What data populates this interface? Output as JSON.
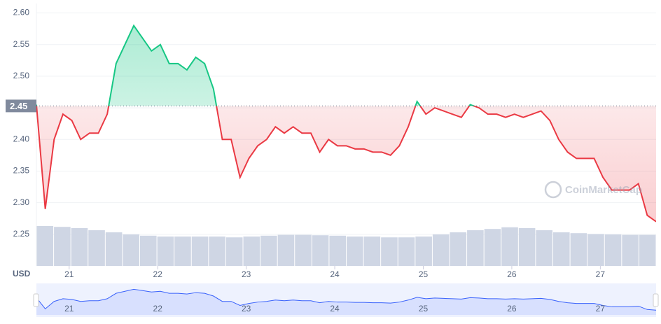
{
  "chart_data": {
    "type": "line",
    "currency": "USD",
    "watermark": "CoinMarketCap",
    "x": [
      20.63,
      20.73,
      20.83,
      20.93,
      21.03,
      21.13,
      21.23,
      21.33,
      21.43,
      21.53,
      21.63,
      21.73,
      21.83,
      21.93,
      22.03,
      22.13,
      22.23,
      22.33,
      22.43,
      22.53,
      22.63,
      22.73,
      22.83,
      22.93,
      23.03,
      23.13,
      23.23,
      23.33,
      23.43,
      23.53,
      23.63,
      23.73,
      23.83,
      23.93,
      24.03,
      24.13,
      24.23,
      24.33,
      24.43,
      24.53,
      24.63,
      24.73,
      24.83,
      24.93,
      25.03,
      25.13,
      25.23,
      25.33,
      25.43,
      25.53,
      25.63,
      25.73,
      25.83,
      25.93,
      26.03,
      26.13,
      26.23,
      26.33,
      26.43,
      26.53,
      26.63,
      26.73,
      26.83,
      26.93,
      27.03,
      27.13,
      27.23,
      27.33,
      27.43,
      27.53,
      27.63
    ],
    "values": [
      2.455,
      2.29,
      2.4,
      2.44,
      2.43,
      2.4,
      2.41,
      2.41,
      2.44,
      2.52,
      2.55,
      2.58,
      2.56,
      2.54,
      2.55,
      2.52,
      2.52,
      2.51,
      2.53,
      2.52,
      2.48,
      2.4,
      2.4,
      2.34,
      2.37,
      2.39,
      2.4,
      2.42,
      2.41,
      2.42,
      2.41,
      2.41,
      2.38,
      2.4,
      2.39,
      2.39,
      2.385,
      2.385,
      2.38,
      2.38,
      2.375,
      2.39,
      2.42,
      2.46,
      2.44,
      2.45,
      2.445,
      2.44,
      2.435,
      2.455,
      2.45,
      2.44,
      2.44,
      2.435,
      2.44,
      2.435,
      2.44,
      2.445,
      2.43,
      2.4,
      2.38,
      2.37,
      2.37,
      2.37,
      2.34,
      2.32,
      2.32,
      2.32,
      2.33,
      2.28,
      2.27
    ],
    "up_color": "#16c784",
    "down_color": "#ea3943",
    "navigator_color": "#3861fb",
    "reference": {
      "value": 2.453,
      "label": "2.45"
    },
    "xlim": [
      20.63,
      27.63
    ],
    "xticks": [
      21,
      22,
      23,
      24,
      25,
      26,
      27
    ],
    "ylim": [
      2.2,
      2.615
    ],
    "yticks": [
      {
        "value": 2.25,
        "label": "2.25"
      },
      {
        "value": 2.3,
        "label": "2.30"
      },
      {
        "value": 2.35,
        "label": "2.35"
      },
      {
        "value": 2.4,
        "label": "2.40"
      },
      {
        "value": 2.45,
        "label": "2.45"
      },
      {
        "value": 2.5,
        "label": "2.50"
      },
      {
        "value": 2.55,
        "label": "2.55"
      },
      {
        "value": 2.6,
        "label": "2.60"
      }
    ],
    "grid": true,
    "volume": {
      "color": "#cfd6e4",
      "ylim": [
        0,
        100
      ],
      "values": [
        95,
        93,
        90,
        85,
        80,
        75,
        72,
        70,
        70,
        70,
        70,
        68,
        70,
        72,
        74,
        74,
        73,
        72,
        70,
        70,
        68,
        68,
        70,
        75,
        80,
        85,
        88,
        92,
        90,
        85,
        80,
        78,
        76,
        75,
        74,
        74
      ]
    }
  }
}
